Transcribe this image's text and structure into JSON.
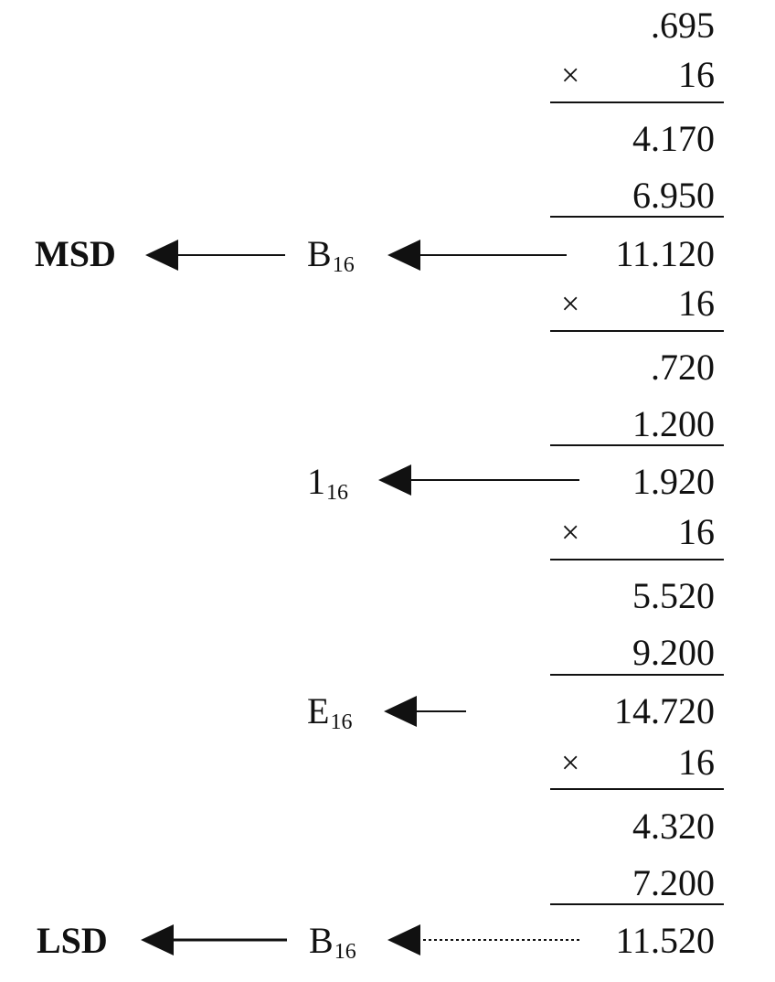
{
  "steps": [
    {
      "multiplicand": ".695",
      "times_symbol": "×",
      "multiplier": "16",
      "partial_1": "4.170",
      "partial_2": "6.950",
      "product": "11.120",
      "digit": "B",
      "base": "16",
      "end_label": "MSD"
    },
    {
      "times_symbol": "×",
      "multiplier": "16",
      "partial_1": ".720",
      "partial_2": "1.200",
      "product": "1.920",
      "digit": "1",
      "base": "16"
    },
    {
      "times_symbol": "×",
      "multiplier": "16",
      "partial_1": "5.520",
      "partial_2": "9.200",
      "product": "14.720",
      "digit": "E",
      "base": "16"
    },
    {
      "times_symbol": "×",
      "multiplier": "16",
      "partial_1": "4.320",
      "partial_2": "7.200",
      "product": "11.520",
      "digit": "B",
      "base": "16",
      "end_label": "LSD"
    }
  ]
}
